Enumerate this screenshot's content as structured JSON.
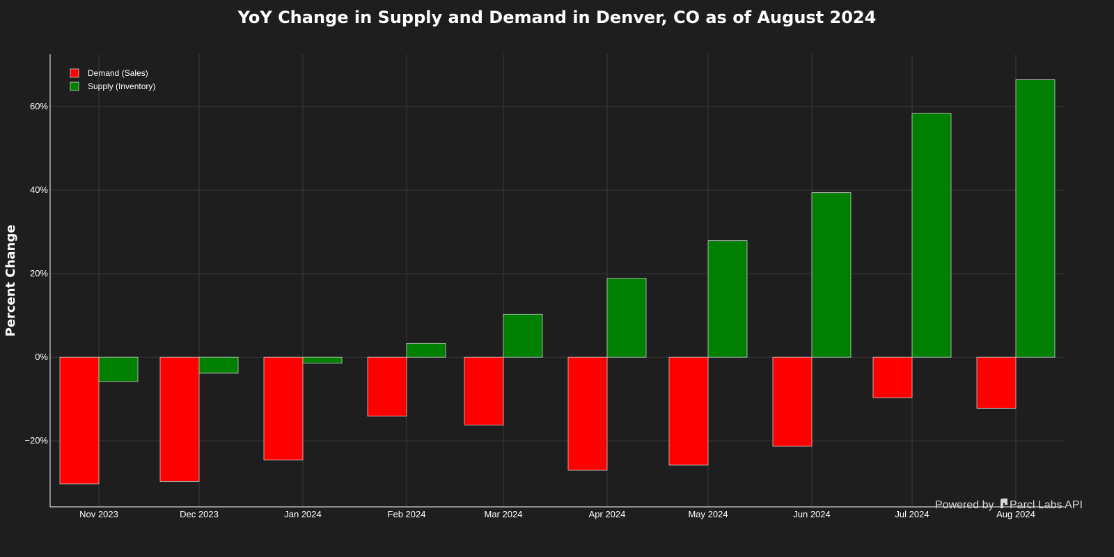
{
  "chart_data": {
    "type": "bar",
    "title": "YoY Change in Supply and Demand in Denver, CO as of August 2024",
    "xlabel": "",
    "ylabel": "Percent Change",
    "categories": [
      "Nov 2023",
      "Dec 2023",
      "Jan 2024",
      "Feb 2024",
      "Mar 2024",
      "Apr 2024",
      "May 2024",
      "Jun 2024",
      "Jul 2024",
      "Aug 2024"
    ],
    "series": [
      {
        "name": "Demand (Sales)",
        "color": "#ff0000",
        "values": [
          -30.3,
          -29.7,
          -24.6,
          -14.1,
          -16.2,
          -27.0,
          -25.8,
          -21.3,
          -9.7,
          -12.2
        ]
      },
      {
        "name": "Supply (Inventory)",
        "color": "#008000",
        "values": [
          -5.8,
          -3.8,
          -1.4,
          3.3,
          10.3,
          18.9,
          27.9,
          39.4,
          58.4,
          66.4
        ]
      }
    ],
    "ylim": [
      -35.8,
      72.5
    ],
    "yticks": [
      -20,
      0,
      20,
      40,
      60
    ],
    "ytick_labels": [
      "−20%",
      "0%",
      "20%",
      "40%",
      "60%"
    ],
    "grid": true,
    "legend_position": "top-left",
    "background": "#1e1e1e",
    "gridline_color": "#3a3a3a",
    "bar_border_color": "#cfcfcf"
  },
  "watermark": {
    "prefix": "Powered by",
    "brand": "Parcl Labs API",
    "logo_icon": "parcl-labs-logo-icon"
  }
}
